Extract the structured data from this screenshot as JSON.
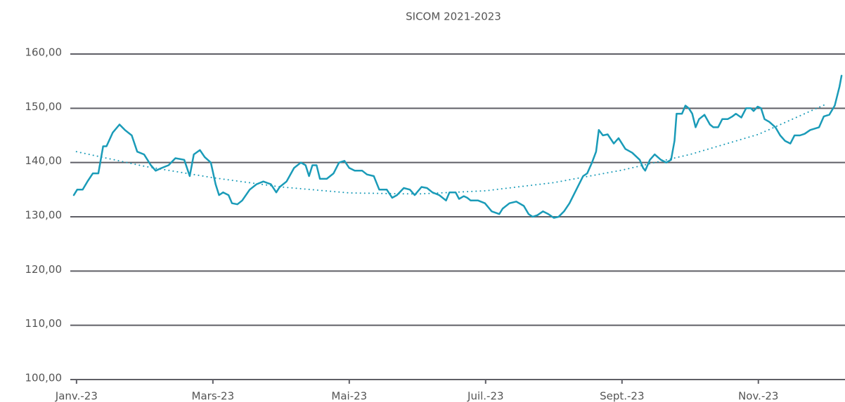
{
  "chart_data": {
    "type": "line",
    "title": "SICOM 2021-2023",
    "xlim": [
      -0.05,
      11.25
    ],
    "xticks": [
      {
        "value": 0,
        "label": "Janv.-23"
      },
      {
        "value": 2,
        "label": "Mars-23"
      },
      {
        "value": 4,
        "label": "Mai-23"
      },
      {
        "value": 6,
        "label": "Juil.-23"
      },
      {
        "value": 8,
        "label": "Sept.-23"
      },
      {
        "value": 10,
        "label": "Nov.-23"
      }
    ],
    "ylim": [
      100,
      160
    ],
    "yticks": [
      {
        "value": 100,
        "label": "100,00"
      },
      {
        "value": 110,
        "label": "110,00"
      },
      {
        "value": 120,
        "label": "120,00"
      },
      {
        "value": 130,
        "label": "130,00"
      },
      {
        "value": 140,
        "label": "140,00"
      },
      {
        "value": 150,
        "label": "150,00"
      },
      {
        "value": 160,
        "label": "160,00"
      }
    ],
    "grid": true,
    "series": [
      {
        "color": "#1a9bb8",
        "style": "solid",
        "x": [
          -0.04,
          0.01,
          0.09,
          0.16,
          0.24,
          0.32,
          0.39,
          0.44,
          0.53,
          0.63,
          0.71,
          0.81,
          0.89,
          0.99,
          1.09,
          1.16,
          1.25,
          1.35,
          1.45,
          1.58,
          1.66,
          1.72,
          1.81,
          1.88,
          1.97,
          2.04,
          2.09,
          2.15,
          2.23,
          2.28,
          2.36,
          2.43,
          2.54,
          2.64,
          2.74,
          2.85,
          2.93,
          2.98,
          3.08,
          3.19,
          3.29,
          3.36,
          3.41,
          3.46,
          3.52,
          3.57,
          3.67,
          3.77,
          3.85,
          3.93,
          4.0,
          4.08,
          4.19,
          4.26,
          4.36,
          4.44,
          4.55,
          4.63,
          4.7,
          4.8,
          4.89,
          4.96,
          5.06,
          5.14,
          5.22,
          5.32,
          5.42,
          5.47,
          5.56,
          5.61,
          5.68,
          5.73,
          5.78,
          5.89,
          5.99,
          6.09,
          6.2,
          6.25,
          6.35,
          6.45,
          6.56,
          6.63,
          6.69,
          6.76,
          6.84,
          6.92,
          7.0,
          7.07,
          7.15,
          7.23,
          7.33,
          7.43,
          7.49,
          7.56,
          7.62,
          7.66,
          7.72,
          7.79,
          7.88,
          7.95,
          8.05,
          8.15,
          8.26,
          8.31,
          8.34,
          8.41,
          8.48,
          8.57,
          8.65,
          8.72,
          8.77,
          8.8,
          8.88,
          8.93,
          8.98,
          9.03,
          9.08,
          9.13,
          9.21,
          9.29,
          9.34,
          9.41,
          9.47,
          9.55,
          9.62,
          9.67,
          9.75,
          9.82,
          9.89,
          9.93,
          9.99,
          10.04,
          10.09,
          10.16,
          10.25,
          10.32,
          10.39,
          10.47,
          10.53,
          10.61,
          10.68,
          10.76,
          10.89,
          10.96,
          11.04,
          11.12,
          11.19,
          11.22
        ],
        "values": [
          134,
          135,
          135,
          136.5,
          138,
          138,
          143,
          143,
          145.5,
          147,
          146,
          145,
          142,
          141.5,
          139.5,
          138.5,
          139,
          139.5,
          140.8,
          140.5,
          137.5,
          141.5,
          142.3,
          141,
          140,
          136,
          134,
          134.5,
          134,
          132.5,
          132.3,
          133,
          135,
          136,
          136.5,
          136,
          134.5,
          135.5,
          136.5,
          139,
          140,
          139.5,
          137.5,
          139.5,
          139.5,
          137,
          137,
          138,
          140,
          140.3,
          139,
          138.5,
          138.5,
          137.8,
          137.5,
          135,
          135,
          133.5,
          134,
          135.3,
          135,
          134,
          135.5,
          135.3,
          134.5,
          134,
          133,
          134.5,
          134.5,
          133.3,
          133.8,
          133.5,
          133,
          133,
          132.5,
          131,
          130.5,
          131.5,
          132.5,
          132.8,
          132,
          130.5,
          130,
          130.3,
          131,
          130.5,
          129.8,
          130,
          131,
          132.5,
          135,
          137.5,
          138,
          140,
          142,
          146,
          145,
          145.2,
          143.5,
          144.5,
          142.5,
          141.8,
          140.5,
          139,
          138.5,
          140.5,
          141.5,
          140.5,
          140,
          140.5,
          144,
          149,
          149,
          150.5,
          150,
          149,
          146.5,
          148,
          148.8,
          147,
          146.5,
          146.5,
          148,
          148,
          148.5,
          149,
          148.3,
          150,
          150,
          149.5,
          150.3,
          150,
          148,
          147.5,
          146.5,
          145,
          144,
          143.5,
          145,
          145,
          145.3,
          146,
          146.5,
          148.5,
          148.8,
          150.5,
          154,
          156
        ]
      },
      {
        "color": "#1a9bb8",
        "style": "dotted",
        "x": [
          0,
          1,
          2,
          3,
          4,
          5,
          6,
          7,
          8,
          9,
          10,
          11
        ],
        "values": [
          142,
          139.3,
          137.2,
          135.5,
          134.4,
          134.2,
          134.8,
          136.3,
          138.6,
          141.5,
          145.2,
          150.8
        ]
      }
    ]
  }
}
